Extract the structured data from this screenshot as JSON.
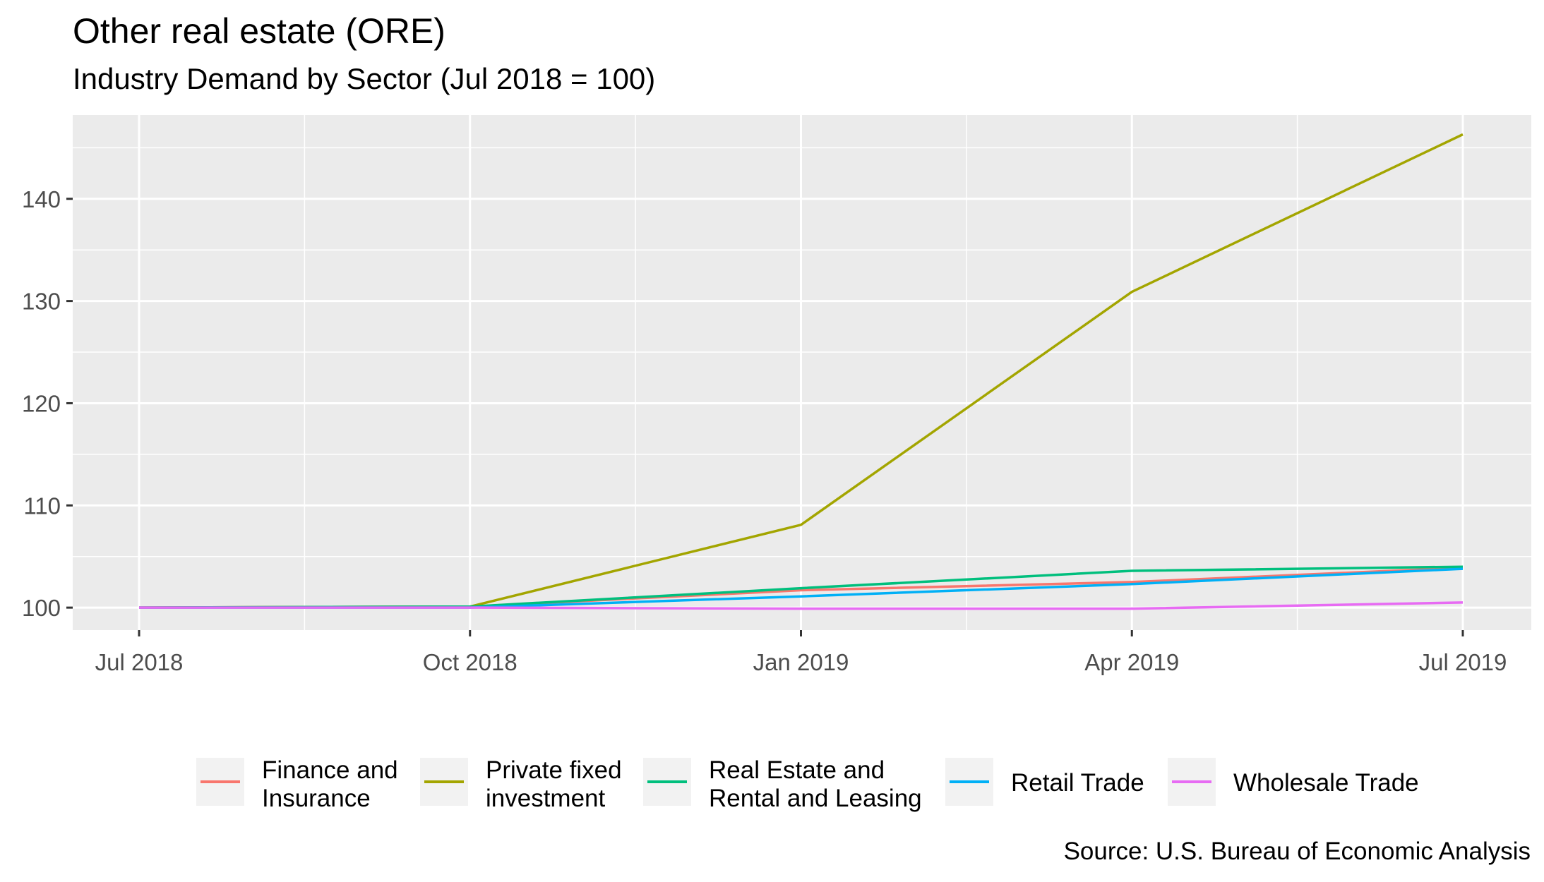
{
  "chart_data": {
    "type": "line",
    "title": "Other real estate (ORE)",
    "subtitle": "Industry Demand by Sector (Jul 2018 = 100)",
    "xlabel": "",
    "ylabel": "",
    "x": [
      "Jul 2018",
      "Oct 2018",
      "Jan 2019",
      "Apr 2019",
      "Jul 2019"
    ],
    "xlim": [
      "Jul 2018",
      "Jul 2019"
    ],
    "ylim": [
      97.8,
      148.2
    ],
    "yticks": [
      100,
      110,
      120,
      130,
      140
    ],
    "grid": true,
    "legend_position": "bottom",
    "series": [
      {
        "name": "Finance and Insurance",
        "label_lines": [
          "Finance and",
          "Insurance"
        ],
        "color": "#F8766D",
        "values": [
          100,
          100.1,
          101.7,
          102.5,
          103.9
        ]
      },
      {
        "name": "Private fixed investment",
        "label_lines": [
          "Private fixed",
          "investment"
        ],
        "color": "#A3A500",
        "values": [
          100,
          100.1,
          108.1,
          130.9,
          146.3
        ]
      },
      {
        "name": "Real Estate and Rental and Leasing",
        "label_lines": [
          "Real Estate and",
          "Rental and Leasing"
        ],
        "color": "#00BF7D",
        "values": [
          100,
          100.1,
          101.9,
          103.6,
          104.0
        ]
      },
      {
        "name": "Retail Trade",
        "label_lines": [
          "Retail Trade"
        ],
        "color": "#00B0F6",
        "values": [
          100,
          100.0,
          101.1,
          102.3,
          103.8
        ]
      },
      {
        "name": "Wholesale Trade",
        "label_lines": [
          "Wholesale Trade"
        ],
        "color": "#E76BF3",
        "values": [
          100,
          100.0,
          99.9,
          99.9,
          100.5
        ]
      }
    ],
    "caption": "Source: U.S. Bureau of Economic Analysis"
  }
}
